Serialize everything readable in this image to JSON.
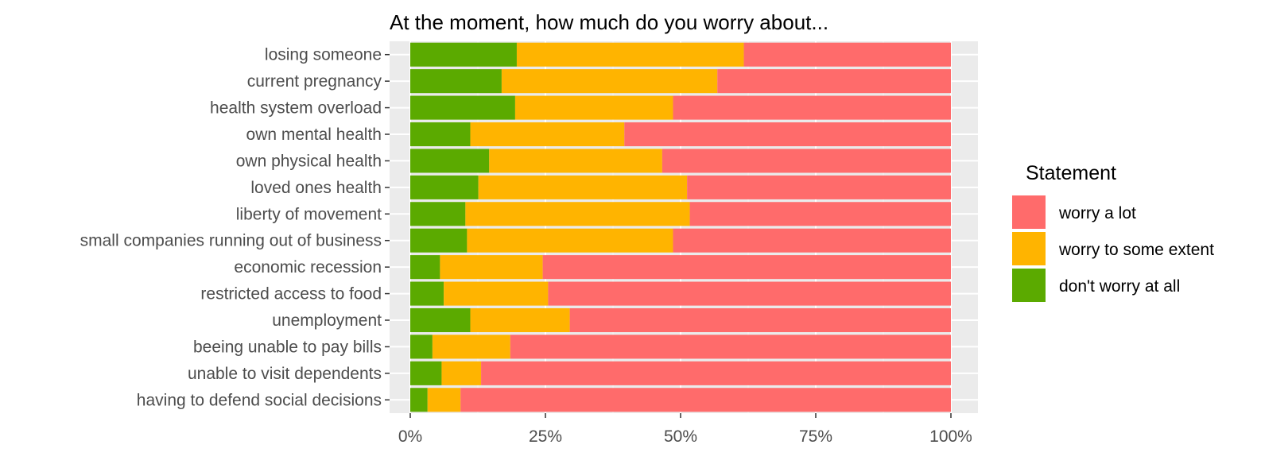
{
  "chart_data": {
    "type": "bar",
    "orientation": "horizontal",
    "stacked": true,
    "title": "At the moment, how much do you worry about...",
    "xlabel": "",
    "ylabel": "",
    "xlim": [
      0,
      100
    ],
    "x_ticks": [
      "0%",
      "25%",
      "50%",
      "75%",
      "100%"
    ],
    "grid": true,
    "legend_position": "right",
    "legend_title": "Statement",
    "categories": [
      "losing someone",
      "current pregnancy",
      "health system overload",
      "own mental health",
      "own physical health",
      "loved ones health",
      "liberty of movement",
      "small companies running out of business",
      "economic recession",
      "restricted access to food",
      "unemployment",
      "beeing unable to pay bills",
      "unable to visit dependents",
      "having to defend social decisions"
    ],
    "series": [
      {
        "name": "don't worry at all",
        "color": "#5BAA00",
        "values": [
          19.7,
          16.9,
          19.4,
          11.1,
          14.6,
          12.6,
          10.2,
          10.5,
          5.5,
          6.2,
          11.1,
          4.1,
          5.8,
          3.2
        ]
      },
      {
        "name": "worry to some extent",
        "color": "#FFB400",
        "values": [
          42.0,
          39.9,
          29.2,
          28.5,
          32.0,
          38.6,
          41.5,
          38.1,
          19.0,
          19.3,
          18.4,
          14.4,
          7.3,
          6.1
        ]
      },
      {
        "name": "worry a lot",
        "color": "#FF6B6B",
        "values": [
          38.3,
          43.2,
          51.4,
          60.4,
          53.4,
          48.8,
          48.3,
          51.4,
          75.5,
          74.5,
          70.5,
          81.5,
          86.9,
          90.7
        ]
      }
    ],
    "legend_order": [
      "worry a lot",
      "worry to some extent",
      "don't worry at all"
    ]
  }
}
